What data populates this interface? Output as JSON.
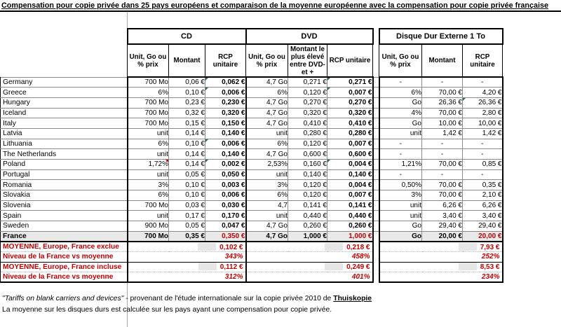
{
  "title": "Compensation pour copie privée dans 25 pays européens et comparaison de la moyenne européenne avec la compensation pour copie privée française",
  "colors": {
    "accent_red": "#C00000",
    "row_highlight": "#e9e9e9",
    "chip_gray": "#e6e6e6",
    "comment_green": "#1f7246"
  },
  "table": {
    "groups": {
      "cd": "CD",
      "dvd": "DVD",
      "hdd": "Disque Dur Externe 1 To"
    },
    "subheaders": {
      "unit": "Unit, Go ou % prix",
      "amount": "Montant",
      "dvd_amount": "Montant le plus élevé entre DVD- et +",
      "rcp": "RCP unitaire"
    },
    "rows": [
      {
        "country": "Germany",
        "cd": [
          "700 Mo",
          "0,06 €",
          "0,062 €"
        ],
        "dvd": [
          "4,7 Go",
          "0,271 €",
          "0,271 €"
        ],
        "hdd": [
          "-",
          "-",
          "-"
        ],
        "indicators": {
          "cd_rcp": "green",
          "dvd_rcp": "green"
        }
      },
      {
        "country": "Greece",
        "cd": [
          "6%",
          "0,10 €",
          "0,006 €"
        ],
        "dvd": [
          "6%",
          "0,120 €",
          "0,007 €"
        ],
        "hdd": [
          "6%",
          "70,00 €",
          "4,20 €"
        ],
        "indicators": {
          "cd_rcp": "green",
          "dvd_rcp": "green"
        }
      },
      {
        "country": "Hungary",
        "cd": [
          "700 Mo",
          "0,23 €",
          "0,230 €"
        ],
        "dvd": [
          "4,7 Go",
          "0,270 €",
          "0,270 €"
        ],
        "hdd": [
          "Go",
          "26,36 €",
          "26,36 €"
        ],
        "indicators": {
          "hdd_rcp": "green"
        }
      },
      {
        "country": "Iceland",
        "cd": [
          "700 Mo",
          "0,32 €",
          "0,320 €"
        ],
        "dvd": [
          "4,7 Go",
          "0,320 €",
          "0,320 €"
        ],
        "hdd": [
          "4%",
          "70,00 €",
          "2,80 €"
        ]
      },
      {
        "country": "Italy",
        "cd": [
          "700 Mo",
          "0,15 €",
          "0,150 €"
        ],
        "dvd": [
          "4,7 Go",
          "0,410 €",
          "0,410 €"
        ],
        "hdd": [
          "Go",
          "10,00 €",
          "10,00 €"
        ]
      },
      {
        "country": "Latvia",
        "cd": [
          "unit",
          "0,14 €",
          "0,140 €"
        ],
        "dvd": [
          "unit",
          "0,280 €",
          "0,280 €"
        ],
        "hdd": [
          "unit",
          "1,42 €",
          "1,42 €"
        ]
      },
      {
        "country": "Lithuania",
        "cd": [
          "6%",
          "0,10 €",
          "0,006 €"
        ],
        "dvd": [
          "6%",
          "0,120 €",
          "0,007 €"
        ],
        "hdd": [
          "-",
          "-",
          "-"
        ],
        "indicators": {
          "cd_rcp": "green"
        }
      },
      {
        "country": "The Netherlands",
        "cd": [
          "unit",
          "0,14 €",
          "0,140 €"
        ],
        "dvd": [
          "4,7 Go",
          "0,600 €",
          "0,600 €"
        ],
        "hdd": [
          "-",
          "-",
          "-"
        ]
      },
      {
        "country": "Poland",
        "cd": [
          "1,72%",
          "0,14 €",
          "0,002 €"
        ],
        "dvd": [
          "2,53%",
          "0,160 €",
          "0,004 €"
        ],
        "hdd": [
          "1,21%",
          "70,00 €",
          "0,85 €"
        ],
        "indicators": {
          "cd_rcp": "green",
          "dvd_rcp": "green",
          "cd_unit": "red"
        }
      },
      {
        "country": "Portugal",
        "cd": [
          "unit",
          "0,05 €",
          "0,050 €"
        ],
        "dvd": [
          "unit",
          "0,140 €",
          "0,140 €"
        ],
        "hdd": [
          "-",
          "-",
          "-"
        ]
      },
      {
        "country": "Romania",
        "cd": [
          "3%",
          "0,10 €",
          "0,003 €"
        ],
        "dvd": [
          "3%",
          "0,120 €",
          "0,004 €"
        ],
        "hdd": [
          "0,50%",
          "70,00 €",
          "0,35 €"
        ]
      },
      {
        "country": "Slovakia",
        "cd": [
          "6%",
          "0,10 €",
          "0,006 €"
        ],
        "dvd": [
          "6%",
          "0,120 €",
          "0,007 €"
        ],
        "hdd": [
          "3%",
          "70,00 €",
          "2,10 €"
        ]
      },
      {
        "country": "Slovenia",
        "cd": [
          "700 Mo",
          "0,03 €",
          "0,030 €"
        ],
        "dvd": [
          "4,7",
          "0,141 €",
          "0,141 €"
        ],
        "hdd": [
          "unit",
          "6,26 €",
          "6,26 €"
        ]
      },
      {
        "country": "Spain",
        "cd": [
          "unit",
          "0,17 €",
          "0,170 €"
        ],
        "dvd": [
          "unit",
          "0,440 €",
          "0,440 €"
        ],
        "hdd": [
          "unit",
          "3,40 €",
          "3,40 €"
        ]
      },
      {
        "country": "Sweden",
        "cd": [
          "900 Mo",
          "0,05 €",
          "0,047 €"
        ],
        "dvd": [
          "4,7 Go",
          "0,260 €",
          "0,260 €"
        ],
        "hdd": [
          "Go",
          "29,40 €",
          "29,40 €"
        ]
      },
      {
        "country": "France",
        "france": true,
        "cd": [
          "700 Mo",
          "0,35 €",
          "0,350 €"
        ],
        "dvd": [
          "4,7 Go",
          "1,000 €",
          "1,000 €"
        ],
        "hdd": [
          "Go",
          "20,00 €",
          "20,00 €"
        ]
      }
    ]
  },
  "summary": {
    "rows": [
      {
        "label": "MOYENNE, Europe, France exclue",
        "kind": "average",
        "cd": "0,102 €",
        "dvd": "0,218 €",
        "hdd": "7,93 €"
      },
      {
        "label": "Niveau de la France vs moyenne",
        "kind": "ratio",
        "cd": "343%",
        "dvd": "458%",
        "hdd": "252%"
      },
      {
        "label": "MOYENNE, Europe, France incluse",
        "kind": "average",
        "cd": "0,112 €",
        "dvd": "0,249 €",
        "hdd": "8,53 €"
      },
      {
        "label": "Niveau de la France  vs moyenne",
        "kind": "ratio",
        "cd": "312%",
        "dvd": "401%",
        "hdd": "234%"
      }
    ]
  },
  "footnotes": {
    "quote": "\"Tariffs on blank carriers and devices\"",
    "rest": " - provenant de l'étude internationale sur la copie privée 2010 de ",
    "source": "Thuiskopie",
    "note": "La moyenne sur les disques durs est calculée sur les pays ayant une compensation pour copie privée."
  }
}
